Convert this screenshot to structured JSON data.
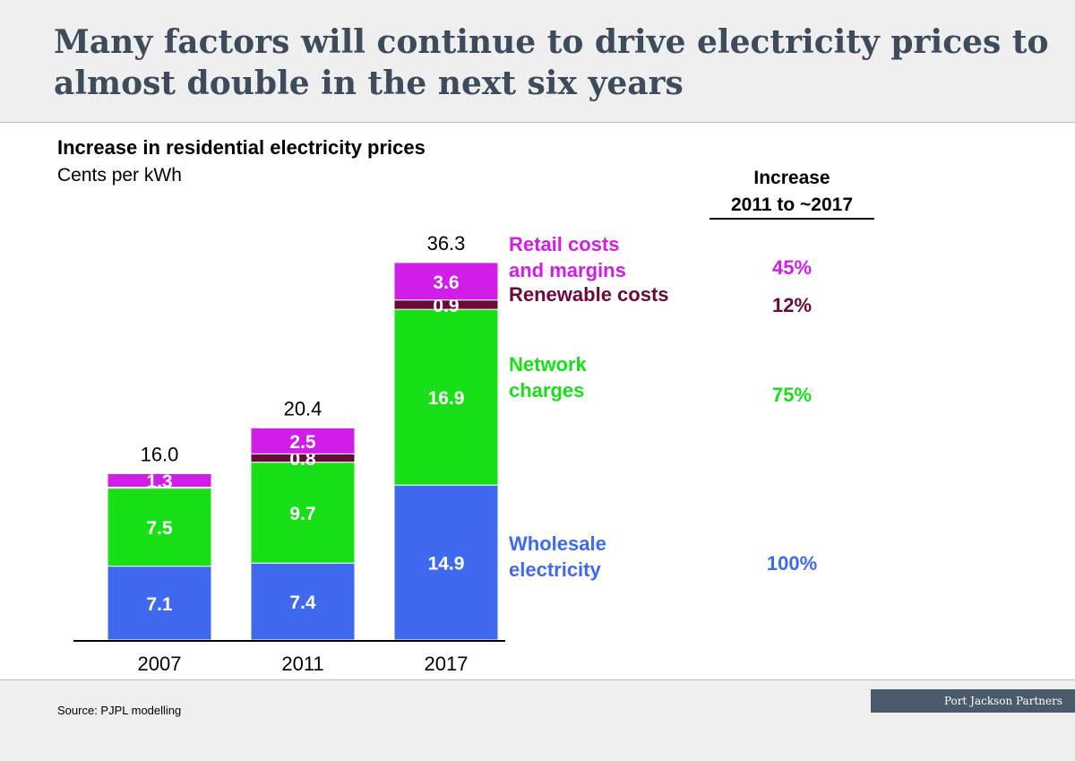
{
  "header": {
    "title": "Many factors will continue to drive electricity prices to almost double in the next six years"
  },
  "chart_data": {
    "type": "bar",
    "stacked": true,
    "title": "Increase in residential electricity prices",
    "ylabel": "Cents per kWh",
    "categories": [
      "2007",
      "2011",
      "2017"
    ],
    "totals": [
      "16.0",
      "20.4",
      "36.3"
    ],
    "series": [
      {
        "name": "Wholesale electricity",
        "values": [
          7.1,
          7.4,
          14.9
        ],
        "labels": [
          "7.1",
          "7.4",
          "14.9"
        ],
        "color": "#3f6af0",
        "increase": "100%"
      },
      {
        "name": "Network charges",
        "values": [
          7.5,
          9.7,
          16.9
        ],
        "labels": [
          "7.5",
          "9.7",
          "16.9"
        ],
        "color": "#17e017",
        "increase": "75%"
      },
      {
        "name": "Renewable costs",
        "values": [
          0.1,
          0.8,
          0.9
        ],
        "labels": [
          "",
          "0.8",
          "0.9"
        ],
        "color": "#6b0a3a",
        "increase": "12%"
      },
      {
        "name": "Retail costs and margins",
        "values": [
          1.3,
          2.5,
          3.6
        ],
        "labels": [
          "1.3",
          "2.5",
          "3.6"
        ],
        "color": "#d11de8",
        "increase": "45%"
      }
    ],
    "legend_lines": [
      [
        "Wholesale",
        "electricity"
      ],
      [
        "Network",
        "charges"
      ],
      [
        "Renewable costs"
      ],
      [
        "Retail costs",
        "and margins"
      ]
    ],
    "legend_placement": "right",
    "increase_column_header": [
      "Increase",
      "2011 to ~2017"
    ],
    "grid": false
  },
  "footer": {
    "source": "Source:  PJPL modelling",
    "brand": "Port Jackson Partners"
  }
}
